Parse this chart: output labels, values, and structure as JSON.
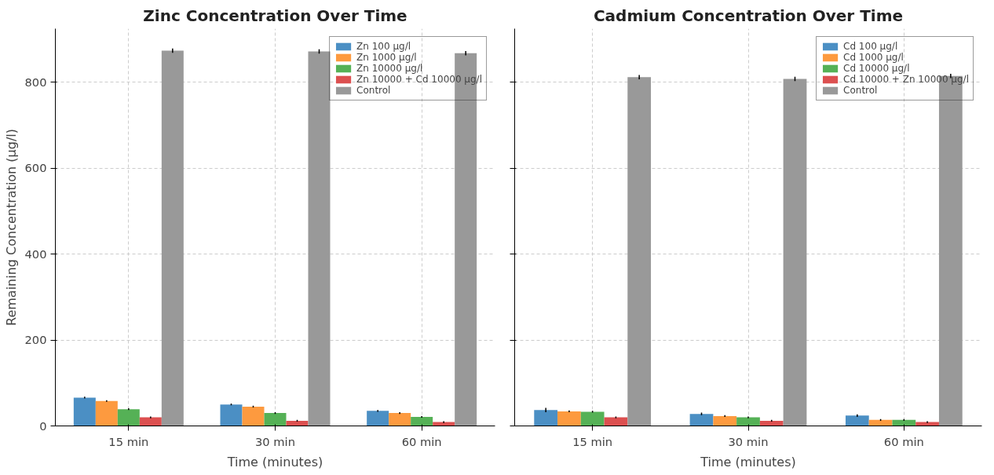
{
  "chart_data": [
    {
      "type": "bar",
      "title": "Zinc Concentration Over Time",
      "xlabel": "Time (minutes)",
      "ylabel": "Remaining Concentration (µg/l)",
      "categories": [
        "15 min",
        "30 min",
        "60 min"
      ],
      "ylim": [
        0,
        925
      ],
      "yticks": [
        0,
        200,
        400,
        600,
        800
      ],
      "grid": true,
      "legend": "top right",
      "series": [
        {
          "name": "Zn 100 µg/l",
          "color": "#4b8fc4",
          "values": [
            66,
            50,
            35
          ],
          "errors": [
            2,
            2,
            2
          ]
        },
        {
          "name": "Zn 1000 µg/l",
          "color": "#fd9a3f",
          "values": [
            58,
            45,
            30
          ],
          "errors": [
            2,
            2,
            2
          ]
        },
        {
          "name": "Zn 10000 µg/l",
          "color": "#55b156",
          "values": [
            39,
            30,
            21
          ],
          "errors": [
            2,
            2,
            2
          ]
        },
        {
          "name": "Zn 10000 + Cd 10000 µg/l",
          "color": "#dc5050",
          "values": [
            20,
            12,
            9
          ],
          "errors": [
            2,
            2,
            2
          ]
        },
        {
          "name": "Control",
          "color": "#999999",
          "values": [
            874,
            872,
            868
          ],
          "errors": [
            5,
            5,
            5
          ]
        }
      ]
    },
    {
      "type": "bar",
      "title": "Cadmium Concentration Over Time",
      "xlabel": "Time (minutes)",
      "categories": [
        "15 min",
        "30 min",
        "60 min"
      ],
      "ylim": [
        0,
        925
      ],
      "yticks": [
        0,
        200,
        400,
        600,
        800
      ],
      "grid": true,
      "legend": "top right",
      "tick_labels": "x",
      "series": [
        {
          "name": "Cd 100 µg/l",
          "color": "#4b8fc4",
          "values": [
            37,
            28,
            24
          ],
          "errors": [
            5,
            3,
            3
          ]
        },
        {
          "name": "Cd 1000 µg/l",
          "color": "#fd9a3f",
          "values": [
            34,
            23,
            14
          ],
          "errors": [
            2,
            2,
            2
          ]
        },
        {
          "name": "Cd 10000 µg/l",
          "color": "#55b156",
          "values": [
            33,
            20,
            14
          ],
          "errors": [
            2,
            2,
            2
          ]
        },
        {
          "name": "Cd 10000 + Zn 10000 µg/l",
          "color": "#dc5050",
          "values": [
            20,
            12,
            9
          ],
          "errors": [
            2,
            2,
            2
          ]
        },
        {
          "name": "Control",
          "color": "#999999",
          "values": [
            812,
            808,
            815
          ],
          "errors": [
            5,
            5,
            5
          ]
        }
      ]
    }
  ]
}
